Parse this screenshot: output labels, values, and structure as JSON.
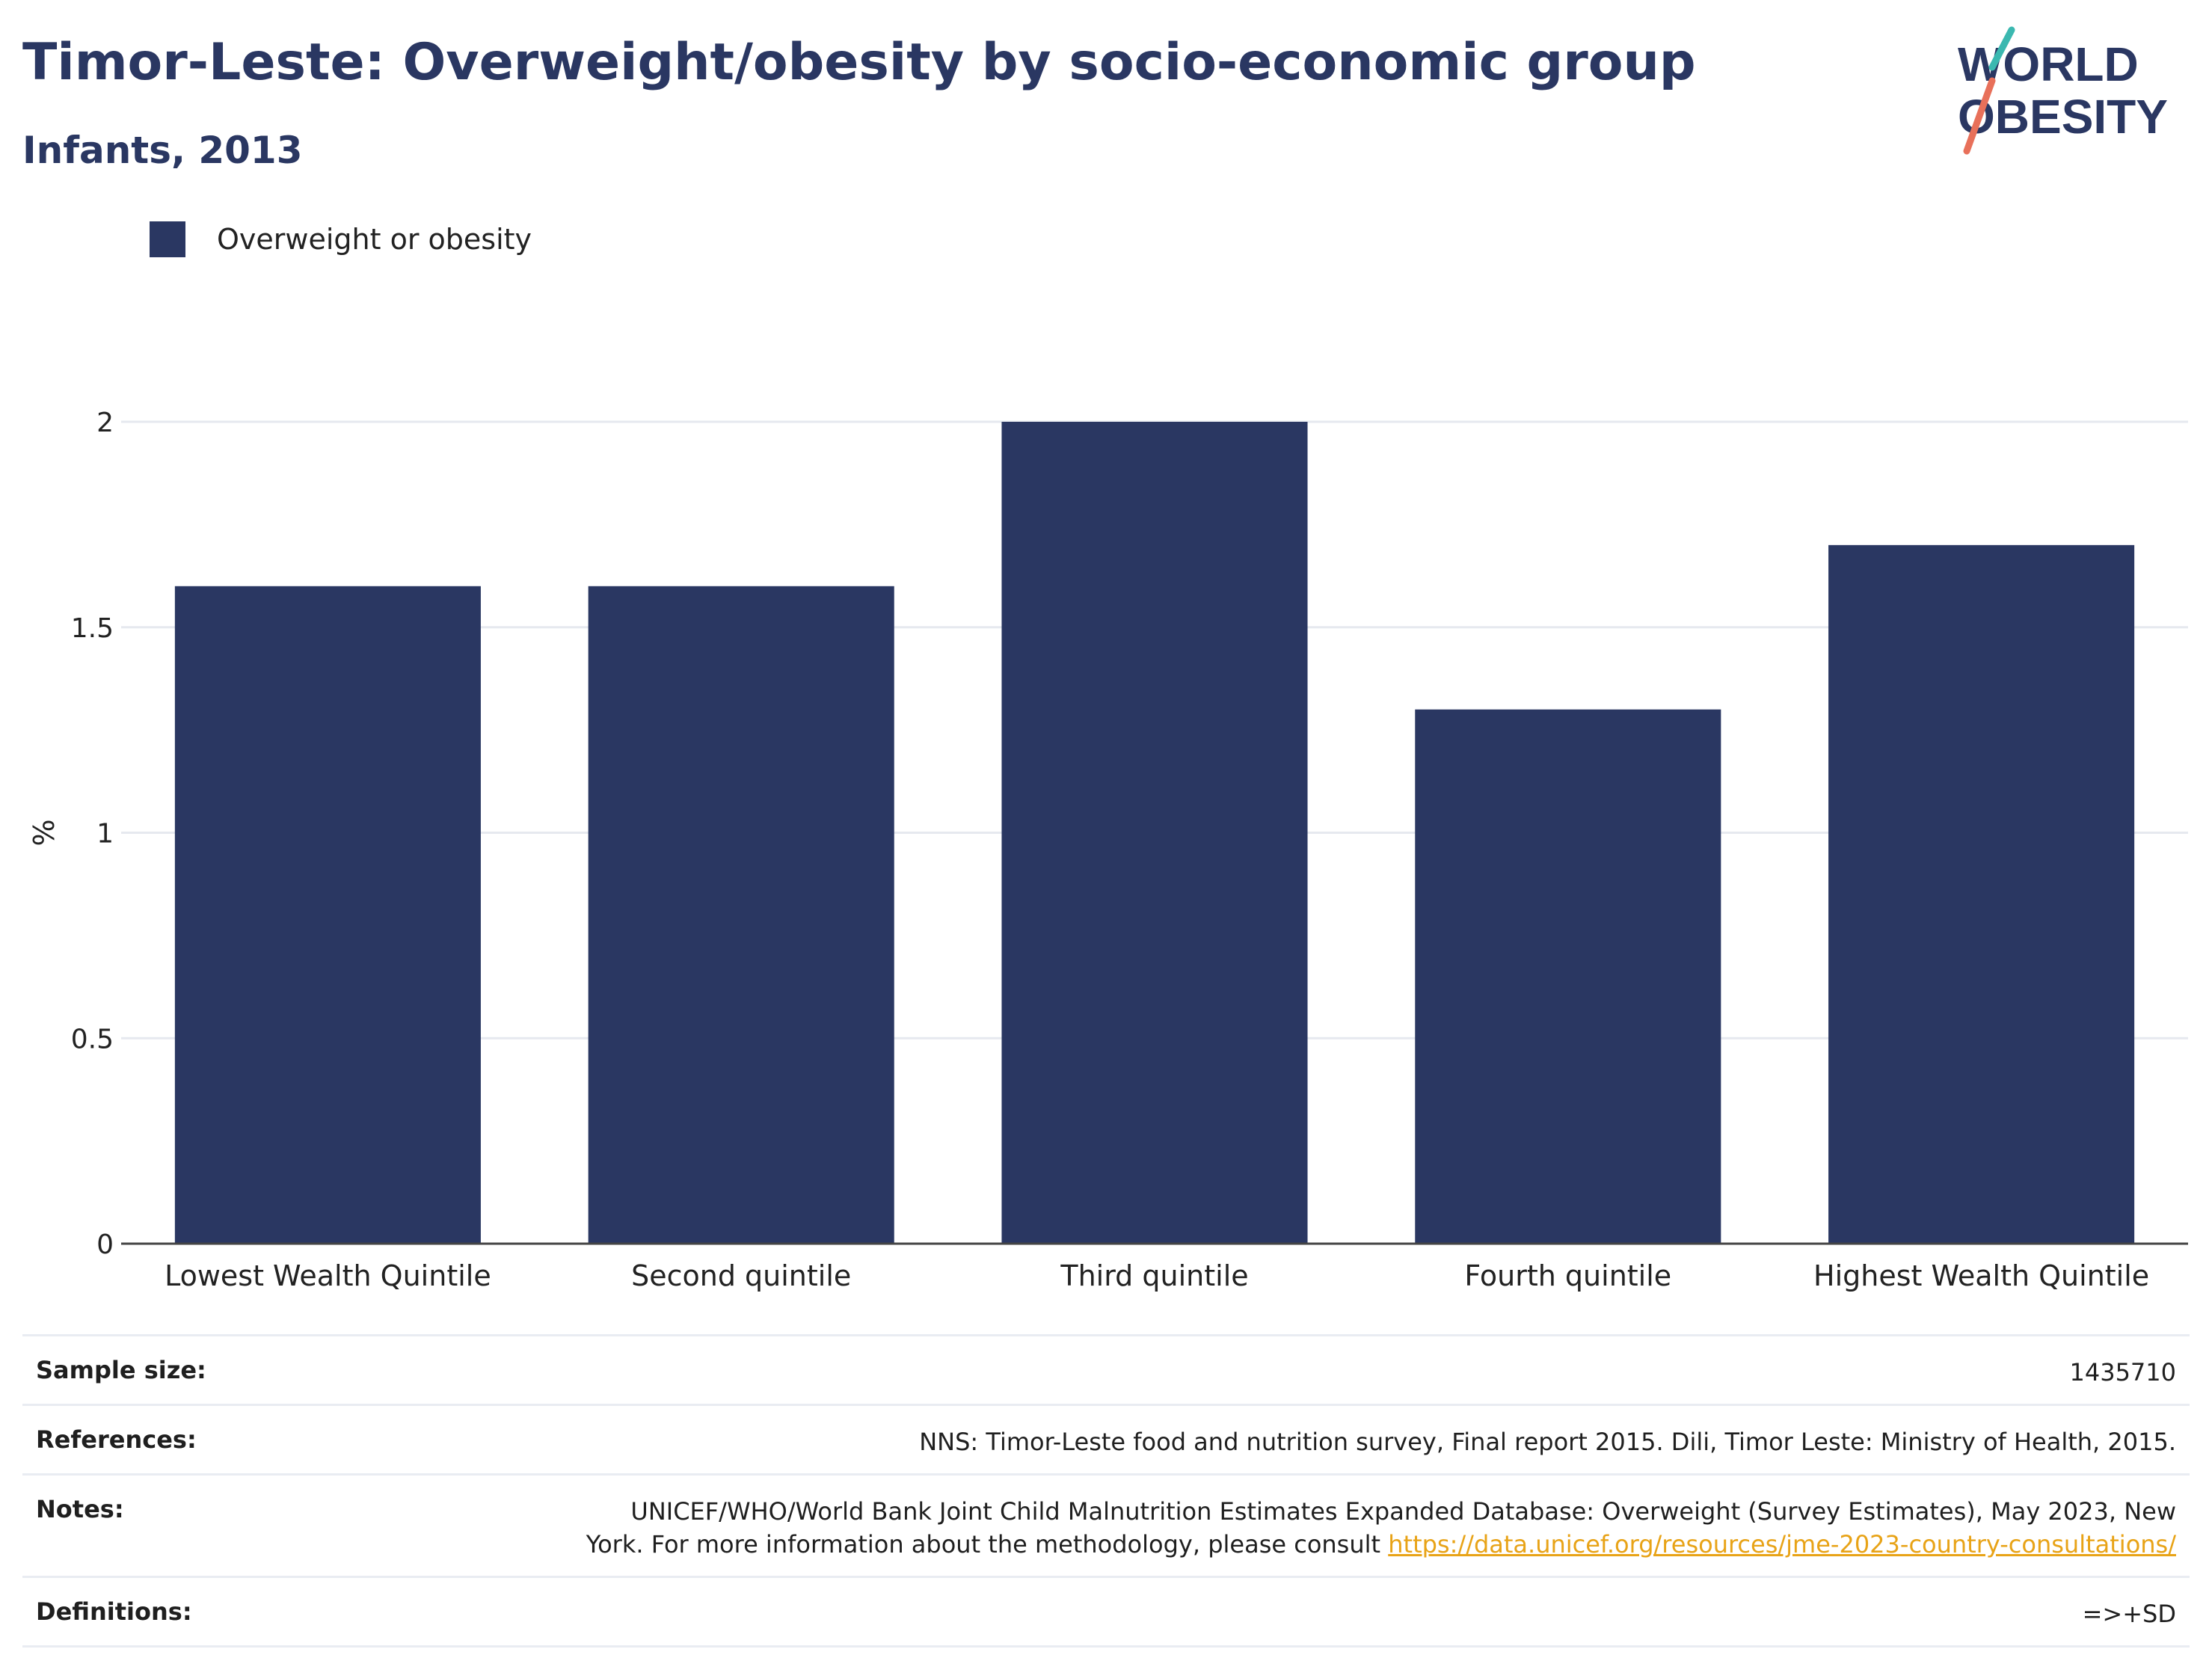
{
  "header": {
    "title": "Timor-Leste: Overweight/obesity by socio-economic group",
    "subtitle": "Infants, 2013"
  },
  "logo": {
    "line1": "WORLD",
    "line2": "OBESITY"
  },
  "colors": {
    "bar": "#2a3762",
    "title": "#2a3762",
    "grid": "#e6e9ef",
    "link": "#e8a317",
    "logo_teal": "#3bb8b0",
    "logo_coral": "#e8705a"
  },
  "legend": {
    "label": "Overweight or obesity"
  },
  "chart_data": {
    "type": "bar",
    "categories": [
      "Lowest Wealth Quintile",
      "Second quintile",
      "Third quintile",
      "Fourth quintile",
      "Highest Wealth Quintile"
    ],
    "series": [
      {
        "name": "Overweight or obesity",
        "values": [
          1.6,
          1.6,
          2.0,
          1.3,
          1.7
        ]
      }
    ],
    "ylabel": "%",
    "ylim": [
      0,
      2.0
    ],
    "yticks": [
      0,
      0.5,
      1,
      1.5,
      2
    ],
    "ytick_labels": [
      "0",
      "0.5",
      "1",
      "1.5",
      "2"
    ],
    "grid": true,
    "legend_position": "top-left"
  },
  "footer": {
    "sample_size": {
      "label": "Sample size:",
      "value": "1435710"
    },
    "references": {
      "label": "References:",
      "value": "NNS: Timor-Leste food and nutrition survey, Final report 2015. Dili, Timor Leste: Ministry of Health, 2015."
    },
    "notes": {
      "label": "Notes:",
      "line1": "UNICEF/WHO/World Bank Joint Child Malnutrition Estimates Expanded Database: Overweight (Survey Estimates), May 2023, New",
      "line2": "York. For more information about the methodology, please consult",
      "link": "https://data.unicef.org/resources/jme-2023-country-consultations/"
    },
    "definitions": {
      "label": "Definitions:",
      "value": "=>+SD"
    }
  }
}
